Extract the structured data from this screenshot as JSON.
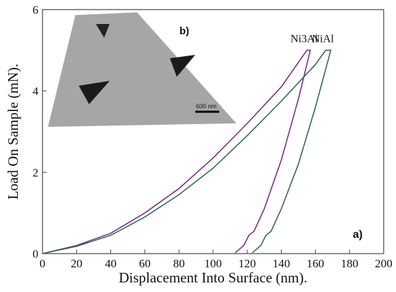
{
  "chart_data": {
    "type": "line",
    "x_label": "Displacement Into Surface (nm).",
    "y_label": "Load On Sample (mN).",
    "xlim": [
      0,
      200
    ],
    "ylim": [
      0,
      6
    ],
    "xticks": [
      0,
      20,
      40,
      60,
      80,
      100,
      120,
      140,
      160,
      180,
      200
    ],
    "yticks": [
      0,
      2,
      4,
      6
    ],
    "series": [
      {
        "name": "Ni3Al",
        "color": "#7a2a8a",
        "x": [
          0,
          20,
          40,
          60,
          80,
          100,
          120,
          140,
          155,
          157,
          150,
          140,
          130,
          124,
          121,
          118,
          113
        ],
        "values": [
          0,
          0.2,
          0.5,
          1.0,
          1.6,
          2.35,
          3.2,
          4.1,
          5.0,
          5.0,
          3.8,
          2.3,
          1.1,
          0.55,
          0.45,
          0.2,
          0.02
        ]
      },
      {
        "name": "NiAl",
        "color": "#2e6b4a",
        "x": [
          0,
          20,
          40,
          60,
          80,
          100,
          120,
          140,
          160,
          166,
          169,
          160,
          150,
          140,
          134,
          131,
          128,
          123
        ],
        "values": [
          0,
          0.18,
          0.45,
          0.9,
          1.45,
          2.1,
          2.9,
          3.75,
          4.65,
          5.0,
          5.0,
          3.6,
          2.2,
          1.1,
          0.55,
          0.45,
          0.2,
          0.02
        ]
      }
    ],
    "annotation": "a)",
    "inset": {
      "label": "b)",
      "scale_bar": "600 nm"
    }
  }
}
